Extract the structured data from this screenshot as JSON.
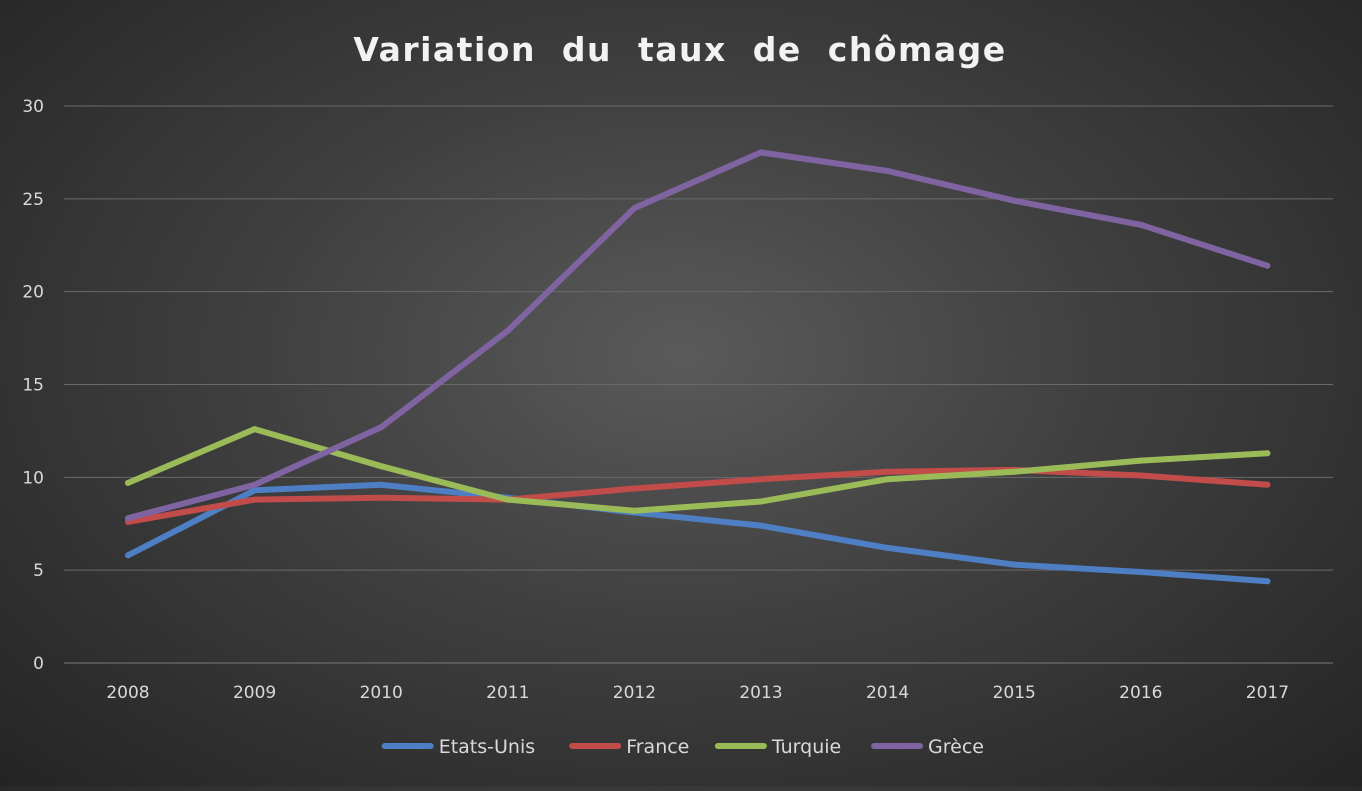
{
  "chart_data": {
    "type": "line",
    "title": "Variation  du  taux  de  chômage",
    "xlabel": "",
    "ylabel": "",
    "x": [
      "2008",
      "2009",
      "2010",
      "2011",
      "2012",
      "2013",
      "2014",
      "2015",
      "2016",
      "2017"
    ],
    "ylim": [
      0,
      30
    ],
    "yticks": [
      "0",
      "5",
      "10",
      "15",
      "20",
      "25",
      "30"
    ],
    "grid": true,
    "legend_position": "bottom",
    "series": [
      {
        "name": "Etats-Unis",
        "color": "#4e7fc4",
        "values": [
          5.8,
          9.3,
          9.6,
          8.9,
          8.1,
          7.4,
          6.2,
          5.3,
          4.9,
          4.4
        ]
      },
      {
        "name": "France",
        "color": "#c24c49",
        "values": [
          7.6,
          8.8,
          8.9,
          8.8,
          9.4,
          9.9,
          10.3,
          10.4,
          10.1,
          9.6
        ]
      },
      {
        "name": "Turquie",
        "color": "#9bbb59",
        "values": [
          9.7,
          12.6,
          10.6,
          8.8,
          8.2,
          8.7,
          9.9,
          10.3,
          10.9,
          11.3
        ]
      },
      {
        "name": "Grèce",
        "color": "#8064a2",
        "values": [
          7.8,
          9.6,
          12.7,
          17.9,
          24.5,
          27.5,
          26.5,
          24.9,
          23.6,
          21.4
        ]
      }
    ]
  }
}
